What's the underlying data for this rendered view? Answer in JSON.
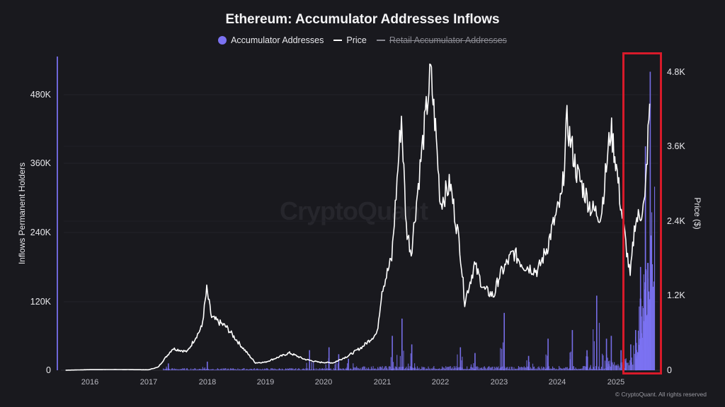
{
  "header": {
    "title": "Ethereum: Accumulator Addresses Inflows"
  },
  "legend": {
    "items": [
      {
        "label": "Accumulator Addresses",
        "color": "#7b72f2",
        "marker": "circle",
        "enabled": true
      },
      {
        "label": "Price",
        "color": "#ffffff",
        "marker": "line",
        "enabled": true
      },
      {
        "label": "Retail Accumulator Addresses",
        "color": "#8a8a92",
        "marker": "line",
        "enabled": false
      }
    ]
  },
  "axes": {
    "left_label": "Inflows Permanent Holders",
    "right_label": "Price ($)",
    "left_ticks": [
      "0",
      "120K",
      "240K",
      "360K",
      "480K"
    ],
    "right_ticks": [
      "0",
      "1.2K",
      "2.4K",
      "3.6K",
      "4.8K"
    ],
    "x_ticks": [
      "2016",
      "2017",
      "2018",
      "2019",
      "2020",
      "2021",
      "2022",
      "2023",
      "2024",
      "2025"
    ]
  },
  "watermark": "CryptoQuant",
  "footer": {
    "copyright": "© CryptoQuant. All rights reserved"
  },
  "annotation": {
    "type": "highlight-box",
    "color": "#d71a2a",
    "covers": "2025 – latest"
  },
  "colors": {
    "background": "#19191e",
    "bars": "#7b72f2",
    "price_line": "#ffffff",
    "grid": "#26262d"
  },
  "chart_data": {
    "type": "bar+line",
    "title": "Ethereum: Accumulator Addresses Inflows",
    "xlabel": "",
    "ylabel": "Inflows Permanent Holders",
    "ylabel_right": "Price ($)",
    "ylim": [
      0,
      540000
    ],
    "ylim_right": [
      0,
      5000
    ],
    "grid": true,
    "legend_position": "top",
    "x_range": [
      "2015-08",
      "2025-08"
    ],
    "series": [
      {
        "name": "Price",
        "axis": "right",
        "type": "line",
        "x": [
          "2015-08",
          "2016-01",
          "2016-06",
          "2017-01",
          "2017-03",
          "2017-06",
          "2017-09",
          "2017-12",
          "2018-01",
          "2018-02",
          "2018-05",
          "2018-08",
          "2018-11",
          "2019-01",
          "2019-06",
          "2019-09",
          "2019-12",
          "2020-03",
          "2020-06",
          "2020-09",
          "2020-12",
          "2021-01",
          "2021-03",
          "2021-05",
          "2021-06",
          "2021-07",
          "2021-09",
          "2021-11",
          "2021-12",
          "2022-01",
          "2022-03",
          "2022-05",
          "2022-06",
          "2022-08",
          "2022-10",
          "2022-12",
          "2023-01",
          "2023-04",
          "2023-06",
          "2023-09",
          "2023-11",
          "2023-12",
          "2024-02",
          "2024-03",
          "2024-05",
          "2024-08",
          "2024-10",
          "2024-12",
          "2025-01",
          "2025-02",
          "2025-04",
          "2025-05",
          "2025-06",
          "2025-07",
          "2025-08"
        ],
        "values": [
          1,
          10,
          12,
          8,
          50,
          350,
          300,
          700,
          1300,
          850,
          700,
          400,
          120,
          130,
          280,
          180,
          130,
          120,
          230,
          380,
          600,
          1300,
          1800,
          4100,
          2300,
          1900,
          3400,
          4800,
          3900,
          2700,
          3000,
          2000,
          1100,
          1700,
          1300,
          1200,
          1500,
          1900,
          1700,
          1600,
          2000,
          2300,
          2800,
          4000,
          3200,
          2600,
          2500,
          3900,
          3400,
          2700,
          1500,
          2400,
          2500,
          2700,
          4300
        ]
      },
      {
        "name": "Accumulator Addresses",
        "axis": "left",
        "type": "bar",
        "x": [
          "2017-05",
          "2018-01",
          "2019-10",
          "2020-02",
          "2020-04",
          "2020-06",
          "2021-03",
          "2021-05",
          "2021-07",
          "2022-05",
          "2022-08",
          "2023-02",
          "2023-07",
          "2023-11",
          "2024-04",
          "2024-07",
          "2024-09",
          "2024-11",
          "2024-12",
          "2025-02",
          "2025-04",
          "2025-05",
          "2025-06",
          "2025-07",
          "2025-08"
        ],
        "values": [
          12000,
          15000,
          35000,
          40000,
          28000,
          20000,
          60000,
          90000,
          45000,
          40000,
          30000,
          100000,
          25000,
          55000,
          70000,
          35000,
          130000,
          55000,
          60000,
          35000,
          45000,
          70000,
          180000,
          390000,
          520000
        ]
      },
      {
        "name": "Retail Accumulator Addresses",
        "axis": "left",
        "type": "line",
        "hidden": true,
        "values": []
      }
    ]
  }
}
